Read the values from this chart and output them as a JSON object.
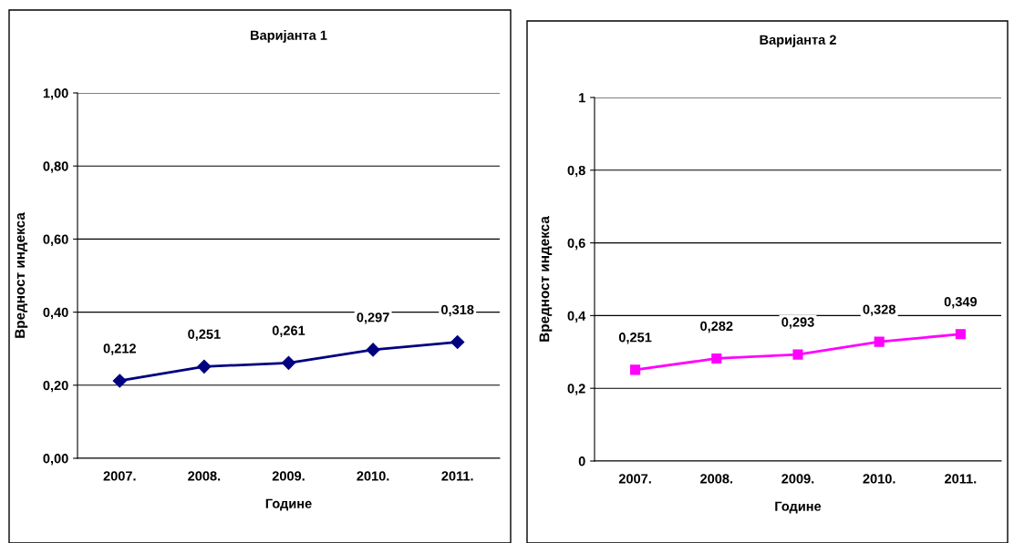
{
  "chart_data": [
    {
      "type": "line",
      "title": "Варијанта 1",
      "xlabel": "Године",
      "ylabel": "Вредност индекса",
      "categories": [
        "2007.",
        "2008.",
        "2009.",
        "2010.",
        "2011."
      ],
      "series": [
        {
          "color": "#000080",
          "values": [
            0.212,
            0.251,
            0.261,
            0.297,
            0.318
          ],
          "value_labels": [
            "0,212",
            "0,251",
            "0,261",
            "0,297",
            "0,318"
          ]
        }
      ],
      "ylim": [
        0,
        1
      ],
      "yticks": [
        {
          "value": 0,
          "label": "0,00"
        },
        {
          "value": 0.2,
          "label": "0,20"
        },
        {
          "value": 0.4,
          "label": "0,40"
        },
        {
          "value": 0.6,
          "label": "0,60"
        },
        {
          "value": 0.8,
          "label": "0,80"
        },
        {
          "value": 1,
          "label": "1,00"
        }
      ],
      "grid": "y",
      "legend": false,
      "marker": "diamond",
      "line_style": "solid"
    },
    {
      "type": "line",
      "title": "Варијанта 2",
      "xlabel": "Године",
      "ylabel": "Вредност индекса",
      "categories": [
        "2007.",
        "2008.",
        "2009.",
        "2010.",
        "2011."
      ],
      "series": [
        {
          "color": "#ff00ff",
          "values": [
            0.251,
            0.282,
            0.293,
            0.328,
            0.349
          ],
          "value_labels": [
            "0,251",
            "0,282",
            "0,293",
            "0,328",
            "0,349"
          ]
        }
      ],
      "ylim": [
        0,
        1
      ],
      "yticks": [
        0,
        {
          "value": 0.2,
          "label": "0,2"
        },
        {
          "value": 0.4,
          "label": "0,4"
        },
        {
          "value": 0.6,
          "label": "0,6"
        },
        {
          "value": 0.8,
          "label": "0,8"
        },
        1
      ],
      "grid": "y",
      "legend": false,
      "marker": "square",
      "line_style": "solid"
    }
  ]
}
